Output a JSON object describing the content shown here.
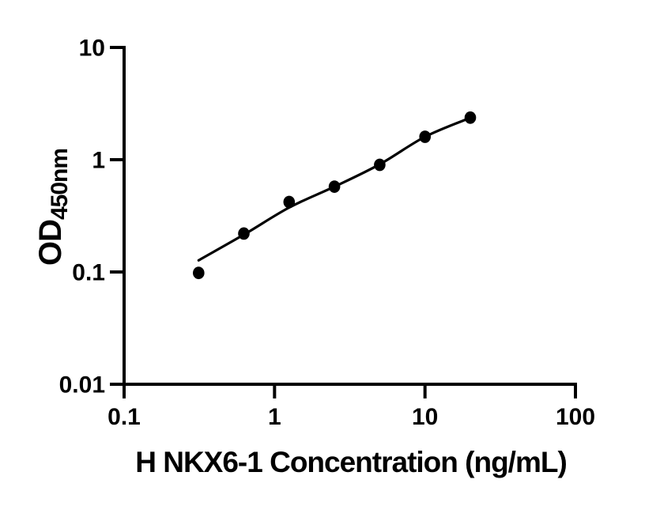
{
  "figure": {
    "background": "#ffffff",
    "foreground": "#000000"
  },
  "chart_data": {
    "type": "scatter",
    "title": "",
    "xlabel": "H NKX6-1 Concentration (ng/mL)",
    "ylabel": "OD450nm",
    "ylabel_main": "OD",
    "ylabel_sub": "450nm",
    "xscale": "log",
    "yscale": "log",
    "xlim": [
      0.1,
      100
    ],
    "ylim": [
      0.01,
      10
    ],
    "x_ticks": [
      0.1,
      1,
      10,
      100
    ],
    "x_tick_labels": [
      "0.1",
      "1",
      "10",
      "100"
    ],
    "y_ticks": [
      10,
      1,
      0.1,
      0.01
    ],
    "y_tick_labels": [
      "10",
      "1",
      "0.1",
      "0.01"
    ],
    "grid": false,
    "legend": false,
    "axis_color": "#000000",
    "series": [
      {
        "name": "H NKX6-1 standard points",
        "type": "scatter",
        "marker": "circle",
        "color": "#000000",
        "points": [
          {
            "x": 0.313,
            "y": 0.098
          },
          {
            "x": 0.625,
            "y": 0.22
          },
          {
            "x": 1.25,
            "y": 0.42
          },
          {
            "x": 2.5,
            "y": 0.575
          },
          {
            "x": 5,
            "y": 0.9
          },
          {
            "x": 10,
            "y": 1.6
          },
          {
            "x": 20,
            "y": 2.37
          }
        ]
      },
      {
        "name": "fitted standard curve",
        "type": "line",
        "color": "#000000",
        "points": [
          {
            "x": 0.313,
            "y": 0.127
          },
          {
            "x": 0.625,
            "y": 0.215
          },
          {
            "x": 1.25,
            "y": 0.375
          },
          {
            "x": 2.5,
            "y": 0.575
          },
          {
            "x": 5,
            "y": 0.91
          },
          {
            "x": 10,
            "y": 1.6
          },
          {
            "x": 20,
            "y": 2.36
          }
        ]
      }
    ]
  }
}
